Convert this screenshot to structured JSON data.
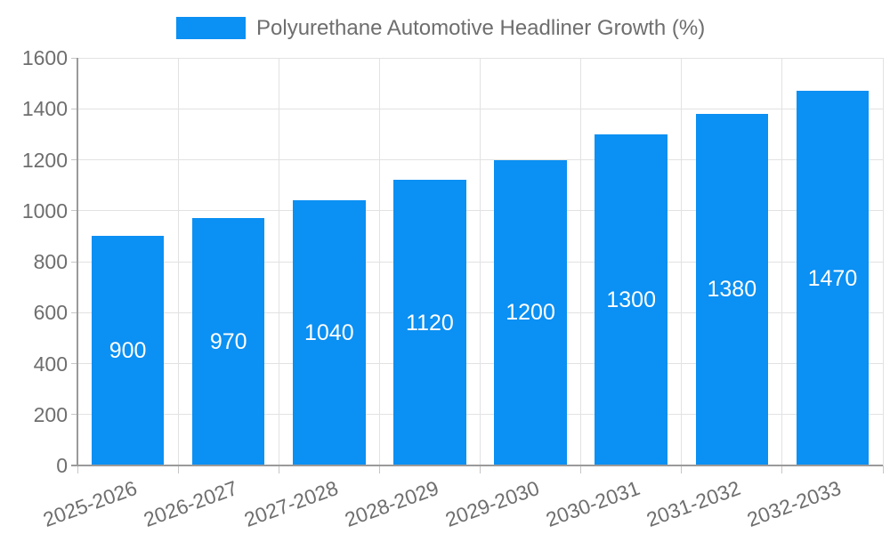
{
  "chart_data": {
    "type": "bar",
    "title": "",
    "legend_label": "Polyurethane Automotive Headliner Growth (%)",
    "categories": [
      "2025-2026",
      "2026-2027",
      "2027-2028",
      "2028-2029",
      "2029-2030",
      "2030-2031",
      "2031-2032",
      "2032-2033"
    ],
    "values": [
      900,
      970,
      1040,
      1120,
      1200,
      1300,
      1380,
      1470
    ],
    "yticks": [
      0,
      200,
      400,
      600,
      800,
      1000,
      1200,
      1400,
      1600
    ],
    "ylim": [
      0,
      1600
    ],
    "xlabel": "",
    "ylabel": "",
    "grid": true,
    "legend_position": "top-center",
    "x_label_rotation_deg": -20,
    "colors": {
      "bar": "#0b90f3",
      "value_label": "#ffffff",
      "axis_text": "#6e6e6e",
      "grid": "#e2e2e2",
      "tick": "#c6c6c6",
      "axis_line": "#9a9a9a",
      "background": "#ffffff"
    }
  }
}
